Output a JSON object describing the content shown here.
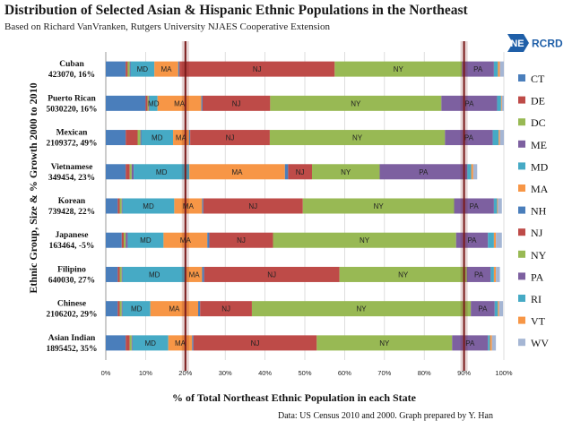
{
  "header": {
    "title": "Distribution of Selected Asian & Hispanic Ethnic Populations in the Northeast",
    "subtitle": "Based on Richard VanVranken, Rutgers University NJAES Cooperative Extension"
  },
  "logo": {
    "text_ne": "NE",
    "text_rcrd": "RCRD",
    "color_ne": "#1f5fa8",
    "color_rcrd": "#1f5fa8"
  },
  "footer": {
    "note": "Data: US Census 2010 and 2000. Graph prepared by Y. Han"
  },
  "chart_data": {
    "type": "bar",
    "orientation": "horizontal",
    "stacked": true,
    "percent_stacked": true,
    "title": "Distribution of Selected Asian & Hispanic Ethnic Populations in the Northeast",
    "xlabel": "% of Total Northeast Ethnic Population in each State",
    "ylabel": "Ethnic Group, Size & % Growth 2000 to 2010",
    "xlim": [
      0,
      100
    ],
    "xticks": [
      "0%",
      "10%",
      "20%",
      "30%",
      "40%",
      "50%",
      "60%",
      "70%",
      "80%",
      "90%",
      "100%"
    ],
    "reference_lines": [
      20,
      90
    ],
    "reference_line_color": "#7a1a1a",
    "legend_position": "right",
    "categories": [
      {
        "name": "Cuban",
        "detail": "423070, 16%"
      },
      {
        "name": "Puerto Rican",
        "detail": "5030220, 16%"
      },
      {
        "name": "Mexican",
        "detail": "2109372, 49%"
      },
      {
        "name": "Vietnamese",
        "detail": "349454, 23%"
      },
      {
        "name": "Korean",
        "detail": "739428, 22%"
      },
      {
        "name": "Japanese",
        "detail": "163464, -5%"
      },
      {
        "name": "Filipino",
        "detail": "640030, 27%"
      },
      {
        "name": "Chinese",
        "detail": "2106202, 29%"
      },
      {
        "name": "Asian Indian",
        "detail": "1895452, 35%"
      }
    ],
    "series": [
      {
        "name": "CT",
        "color": "#4a7ebb",
        "values": [
          5,
          10,
          5,
          5,
          3,
          4,
          3,
          3,
          5
        ]
      },
      {
        "name": "DE",
        "color": "#be4b48",
        "values": [
          0.5,
          0.5,
          3,
          1,
          0.5,
          0.5,
          0.5,
          0.5,
          1
        ]
      },
      {
        "name": "DC",
        "color": "#98b954",
        "values": [
          0.5,
          0.3,
          0.7,
          0.5,
          0.5,
          0.5,
          0.5,
          0.5,
          0.5
        ]
      },
      {
        "name": "ME",
        "color": "#7d60a0",
        "values": [
          0.2,
          0.2,
          0.2,
          0.5,
          0.2,
          0.5,
          0.2,
          0.2,
          0.2
        ]
      },
      {
        "name": "MD",
        "color": "#46aac5",
        "values": [
          6,
          2,
          8,
          14,
          13,
          9,
          16,
          7,
          9
        ]
      },
      {
        "name": "MA",
        "color": "#f79646",
        "values": [
          6,
          11,
          4,
          24,
          7,
          11,
          4,
          12,
          6
        ]
      },
      {
        "name": "NH",
        "color": "#4a7ebb",
        "values": [
          0.3,
          0.3,
          0.3,
          0.8,
          0.3,
          0.5,
          0.5,
          0.5,
          0.3
        ]
      },
      {
        "name": "NJ",
        "color": "#be4b48",
        "values": [
          39,
          17,
          20,
          6,
          25,
          16,
          34,
          13,
          31
        ]
      },
      {
        "name": "NY",
        "color": "#98b954",
        "values": [
          32,
          43,
          44,
          17,
          38,
          46,
          32,
          55,
          34
        ]
      },
      {
        "name": "PA",
        "color": "#7d60a0",
        "values": [
          8,
          14,
          12,
          22,
          10,
          8,
          6,
          6,
          9
        ]
      },
      {
        "name": "RI",
        "color": "#46aac5",
        "values": [
          1,
          1,
          1.5,
          1,
          0.8,
          1.5,
          0.8,
          0.8,
          0.5
        ]
      },
      {
        "name": "VT",
        "color": "#f79646",
        "values": [
          0.5,
          0.2,
          0.3,
          0.5,
          0.2,
          0.5,
          0.5,
          0.3,
          0.5
        ]
      },
      {
        "name": "WV",
        "color": "#a5b6d4",
        "values": [
          1,
          0.5,
          1,
          1,
          1,
          1.5,
          1,
          1,
          1
        ]
      }
    ],
    "bar_labels": [
      [
        {
          "text": "MD",
          "series": "MD"
        },
        {
          "text": "MA",
          "series": "MA"
        },
        {
          "text": "NJ",
          "series": "NJ"
        },
        {
          "text": "NY",
          "series": "NY"
        },
        {
          "text": "PA",
          "series": "PA"
        }
      ],
      [
        {
          "text": "MD",
          "series": "MD"
        },
        {
          "text": "MA",
          "series": "MA"
        },
        {
          "text": "NJ",
          "series": "NJ"
        },
        {
          "text": "NY",
          "series": "NY"
        },
        {
          "text": "PA",
          "series": "PA"
        }
      ],
      [
        {
          "text": "MD",
          "series": "MD"
        },
        {
          "text": "MA",
          "series": "MA"
        },
        {
          "text": "NJ",
          "series": "NJ"
        },
        {
          "text": "NY",
          "series": "NY"
        },
        {
          "text": "PA",
          "series": "PA"
        }
      ],
      [
        {
          "text": "MD",
          "series": "MD"
        },
        {
          "text": "MA",
          "series": "MA"
        },
        {
          "text": "NJ",
          "series": "NJ"
        },
        {
          "text": "NY",
          "series": "NY"
        },
        {
          "text": "PA",
          "series": "PA"
        }
      ],
      [
        {
          "text": "MD",
          "series": "MD"
        },
        {
          "text": "MA",
          "series": "MA"
        },
        {
          "text": "NJ",
          "series": "NJ"
        },
        {
          "text": "NY",
          "series": "NY"
        },
        {
          "text": "PA",
          "series": "PA"
        }
      ],
      [
        {
          "text": "MD",
          "series": "MD"
        },
        {
          "text": "MA",
          "series": "MA"
        },
        {
          "text": "NJ",
          "series": "NJ"
        },
        {
          "text": "NY",
          "series": "NY"
        },
        {
          "text": "PA",
          "series": "PA"
        }
      ],
      [
        {
          "text": "MD",
          "series": "MD"
        },
        {
          "text": "MA",
          "series": "MA"
        },
        {
          "text": "NJ",
          "series": "NJ"
        },
        {
          "text": "NY",
          "series": "NY"
        },
        {
          "text": "PA",
          "series": "PA"
        }
      ],
      [
        {
          "text": "MD",
          "series": "MD"
        },
        {
          "text": "MA",
          "series": "MA"
        },
        {
          "text": "NJ",
          "series": "NJ"
        },
        {
          "text": "NY",
          "series": "NY"
        },
        {
          "text": "PA",
          "series": "PA"
        }
      ],
      [
        {
          "text": "MD",
          "series": "MD"
        },
        {
          "text": "MA",
          "series": "MA"
        },
        {
          "text": "NJ",
          "series": "NJ"
        },
        {
          "text": "NY",
          "series": "NY"
        },
        {
          "text": "PA",
          "series": "PA"
        }
      ]
    ]
  }
}
